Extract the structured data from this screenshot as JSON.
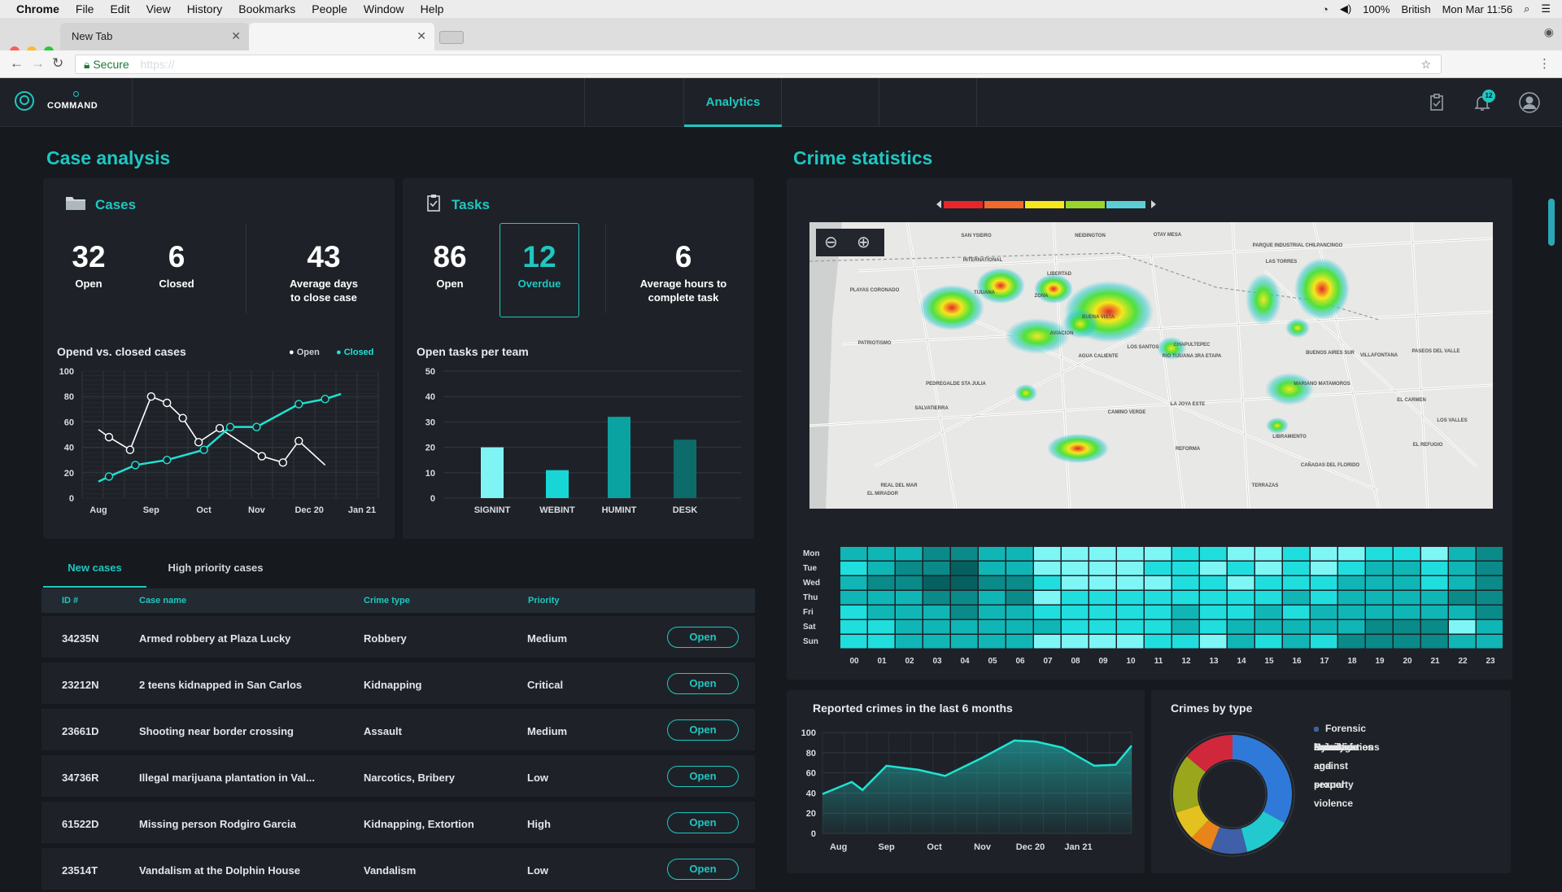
{
  "mac_menu": {
    "app": "Chrome",
    "items": [
      "File",
      "Edit",
      "View",
      "History",
      "Bookmarks",
      "People",
      "Window",
      "Help"
    ],
    "battery": "100%",
    "input": "British",
    "clock": "Mon Mar 11:56"
  },
  "browser": {
    "tab1": "New Tab",
    "tab2": "",
    "secure": "Secure",
    "url": "https://"
  },
  "nav": {
    "logo": "COMMAND",
    "active_tab": "Analytics",
    "badge": "12"
  },
  "case_analysis": {
    "title": "Case analysis",
    "cases": {
      "title": "Cases",
      "open": "32",
      "open_label": "Open",
      "closed": "6",
      "closed_label": "Closed",
      "avg": "43",
      "avg_label1": "Average days",
      "avg_label2": "to close case"
    },
    "tasks": {
      "title": "Tasks",
      "open": "86",
      "open_label": "Open",
      "overdue": "12",
      "overdue_label": "Overdue",
      "avg": "6",
      "avg_label1": "Average hours to",
      "avg_label2": "complete task"
    },
    "line_title": "Opend vs. closed cases",
    "legend_open": "Open",
    "legend_closed": "Closed",
    "bar_title": "Open tasks per team"
  },
  "table": {
    "tabs": [
      "New cases",
      "High priority cases"
    ],
    "headers": [
      "ID #",
      "Case name",
      "Crime type",
      "Priority"
    ],
    "open_label": "Open",
    "rows": [
      {
        "id": "34235N",
        "name": "Armed robbery at Plaza Lucky",
        "type": "Robbery",
        "priority": "Medium"
      },
      {
        "id": "23212N",
        "name": "2 teens kidnapped in San Carlos",
        "type": "Kidnapping",
        "priority": "Critical"
      },
      {
        "id": "23661D",
        "name": "Shooting near border crossing",
        "type": "Assault",
        "priority": "Medium"
      },
      {
        "id": "34736R",
        "name": "Illegal marijuana plantation in Val...",
        "type": "Narcotics, Bribery",
        "priority": "Low"
      },
      {
        "id": "61522D",
        "name": "Missing person Rodgiro Garcia",
        "type": "Kidnapping, Extortion",
        "priority": "High"
      },
      {
        "id": "23514T",
        "name": "Vandalism at the Dolphin House",
        "type": "Vandalism",
        "priority": "Low"
      }
    ]
  },
  "crime_stats": {
    "title": "Crime statistics",
    "map_labels": [
      "SAN YSIDRO",
      "INTERNATIONAL",
      "LIBERTAD",
      "OTAY MESA",
      "NEIDINGTON",
      "PARQUE INDUSTRIAL CHILPANCINGO",
      "TIJUANA",
      "ZONA",
      "BUENA VISTA",
      "PLAYAS CORONADO",
      "PATRIOTISMO",
      "AVIACION",
      "AGUA CALIENTE",
      "RIO TIJUANA 3RA ETAPA",
      "CHAPULTEPEC",
      "LOS SANTOS",
      "PEDREGALDE STA JULIA",
      "SALVATIERRA",
      "CAMINO VERDE",
      "EL MIRADOR",
      "REAL DEL MAR",
      "LAS TORRES",
      "MARIANO MATAMOROS",
      "BUENOS AIRES SUR",
      "VILLAFONTANA",
      "EL CARMEN",
      "LIBRAMIENTO",
      "CAÑADAS DEL FLORIDO",
      "TERRAZAS",
      "LA JOYA ESTE",
      "REFORMA",
      "EL REFUGIO",
      "LOS VALLES",
      "PASEOS DEL VALLE"
    ],
    "heat_days": [
      "Mon",
      "Tue",
      "Wed",
      "Thu",
      "Fri",
      "Sat",
      "Sun"
    ],
    "heat_hours": [
      "00",
      "01",
      "02",
      "03",
      "04",
      "05",
      "06",
      "07",
      "08",
      "09",
      "10",
      "11",
      "12",
      "13",
      "14",
      "15",
      "16",
      "17",
      "18",
      "19",
      "20",
      "21",
      "22",
      "23"
    ],
    "heat_levels": [
      [
        2,
        2,
        2,
        3,
        3,
        2,
        2,
        0,
        0,
        0,
        0,
        0,
        1,
        1,
        0,
        0,
        1,
        0,
        0,
        1,
        1,
        0,
        2,
        3
      ],
      [
        1,
        2,
        3,
        3,
        4,
        2,
        2,
        0,
        0,
        0,
        0,
        1,
        1,
        0,
        1,
        0,
        1,
        0,
        1,
        2,
        2,
        1,
        2,
        3
      ],
      [
        2,
        3,
        3,
        4,
        4,
        3,
        3,
        1,
        0,
        0,
        0,
        0,
        1,
        1,
        0,
        1,
        1,
        1,
        2,
        2,
        2,
        1,
        2,
        3
      ],
      [
        2,
        2,
        2,
        3,
        3,
        2,
        3,
        0,
        1,
        1,
        1,
        1,
        1,
        1,
        1,
        1,
        2,
        1,
        2,
        2,
        2,
        2,
        3,
        3
      ],
      [
        1,
        2,
        2,
        2,
        3,
        2,
        2,
        1,
        1,
        1,
        1,
        1,
        2,
        1,
        1,
        2,
        1,
        2,
        2,
        2,
        2,
        2,
        2,
        3
      ],
      [
        1,
        1,
        2,
        2,
        2,
        2,
        2,
        2,
        1,
        1,
        1,
        1,
        2,
        1,
        2,
        2,
        2,
        2,
        2,
        3,
        3,
        3,
        0,
        2
      ],
      [
        1,
        1,
        2,
        2,
        2,
        2,
        2,
        0,
        0,
        0,
        0,
        1,
        1,
        0,
        2,
        1,
        2,
        1,
        3,
        3,
        3,
        3,
        2,
        2
      ]
    ],
    "scale_colors": [
      "#e8262a",
      "#f06a2a",
      "#f5e71d",
      "#9bd52b",
      "#5ccfd6"
    ],
    "reported_title": "Reported crimes in the last 6 months",
    "bytype_title": "Crimes by type",
    "types": [
      {
        "name": "Narcotics",
        "color": "#d0283a",
        "value": 14
      },
      {
        "name": "Homicide",
        "color": "#2f7ad8",
        "value": 33
      },
      {
        "name": "Cybercrimes",
        "color": "#9aa61c",
        "value": 16
      },
      {
        "name": "Forensic investigations",
        "color": "#e3c21f",
        "value": 8
      },
      {
        "name": "Fraud",
        "color": "#e8841a",
        "value": 6
      },
      {
        "name": "Family and sexual violence",
        "color": "#22c9cf",
        "value": 13
      },
      {
        "name": "Crimes against property",
        "color": "#3f5fa8",
        "value": 10
      }
    ]
  },
  "chart_data": [
    {
      "type": "line",
      "title": "Opend vs. closed cases",
      "categories": [
        "Aug",
        "Sep",
        "Oct",
        "Nov",
        "Dec 20",
        "Jan 21"
      ],
      "ylim": [
        0,
        100
      ],
      "yticks": [
        0,
        20,
        40,
        60,
        80,
        100
      ],
      "series": [
        {
          "name": "Open",
          "color": "#ffffff",
          "x": [
            0,
            0.2,
            0.6,
            1,
            1.3,
            1.6,
            1.9,
            2.3,
            3.1,
            3.5,
            3.8,
            4.3
          ],
          "values": [
            54,
            48,
            38,
            80,
            75,
            63,
            44,
            55,
            33,
            28,
            45,
            26
          ]
        },
        {
          "name": "Closed",
          "color": "#1fe3d2",
          "x": [
            0,
            0.2,
            0.7,
            1.3,
            2,
            2.5,
            3,
            3.8,
            4.3,
            4.6
          ],
          "values": [
            13,
            17,
            26,
            30,
            38,
            56,
            56,
            74,
            78,
            82
          ]
        }
      ]
    },
    {
      "type": "bar",
      "title": "Open tasks per team",
      "categories": [
        "SIGNINT",
        "WEBINT",
        "HUMINT",
        "DESK"
      ],
      "values": [
        20,
        11,
        32,
        23
      ],
      "colors": [
        "#7ff4f4",
        "#18d6d6",
        "#0ba3a1",
        "#0b6c6a"
      ],
      "ylim": [
        0,
        50
      ],
      "yticks": [
        0,
        10,
        20,
        30,
        40,
        50
      ]
    },
    {
      "type": "area",
      "title": "Reported crimes in the last 6 months",
      "categories": [
        "Aug",
        "Sep",
        "Oct",
        "Nov",
        "Dec 20",
        "Jan 21"
      ],
      "ylim": [
        0,
        100
      ],
      "yticks": [
        0,
        20,
        40,
        60,
        80,
        100
      ],
      "x": [
        0,
        0.55,
        0.75,
        1.2,
        1.8,
        2.3,
        3,
        3.6,
        4,
        4.5,
        5.1,
        5.5,
        5.8
      ],
      "values": [
        39,
        51,
        43,
        67,
        63,
        57,
        75,
        92,
        91,
        85,
        67,
        68,
        87
      ]
    },
    {
      "type": "pie",
      "title": "Crimes by type",
      "categories": [
        "Narcotics",
        "Homicide",
        "Cybercrimes",
        "Forensic investigations",
        "Fraud",
        "Family and sexual violence",
        "Crimes against property"
      ],
      "values": [
        14,
        33,
        16,
        8,
        6,
        13,
        10
      ]
    }
  ]
}
